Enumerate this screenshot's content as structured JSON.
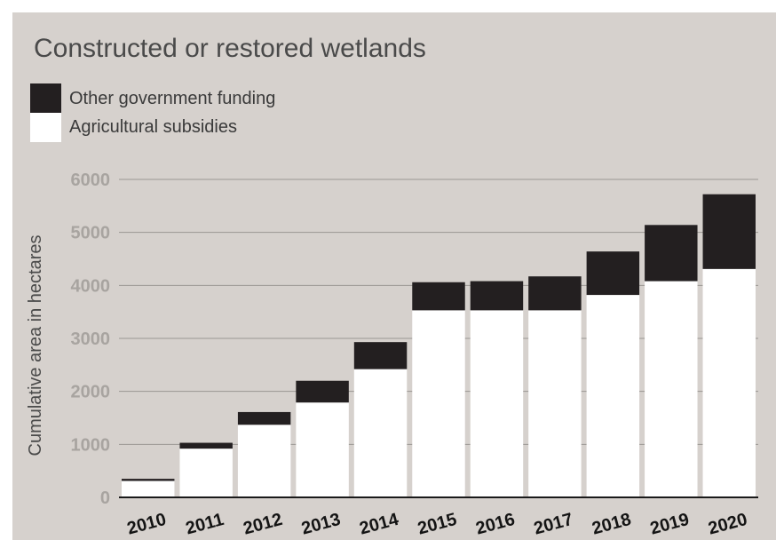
{
  "chart_data": {
    "type": "bar",
    "stacked": true,
    "title": "Constructed or restored wetlands",
    "ylabel": "Cumulative area in hectares",
    "xlabel": "",
    "ylim": [
      0,
      6000
    ],
    "yticks": [
      0,
      1000,
      2000,
      3000,
      4000,
      5000,
      6000
    ],
    "categories": [
      "2010",
      "2011",
      "2012",
      "2013",
      "2014",
      "2015",
      "2016",
      "2017",
      "2018",
      "2019",
      "2020"
    ],
    "series": [
      {
        "name": "Agricultural subsidies",
        "color": "#ffffff",
        "values": [
          310,
          920,
          1370,
          1790,
          2420,
          3530,
          3530,
          3530,
          3820,
          4080,
          4310
        ]
      },
      {
        "name": "Other government funding",
        "color": "#231f20",
        "values": [
          40,
          110,
          240,
          410,
          510,
          530,
          550,
          640,
          820,
          1060,
          1410
        ]
      }
    ],
    "legend": "top-left",
    "grid": true
  }
}
